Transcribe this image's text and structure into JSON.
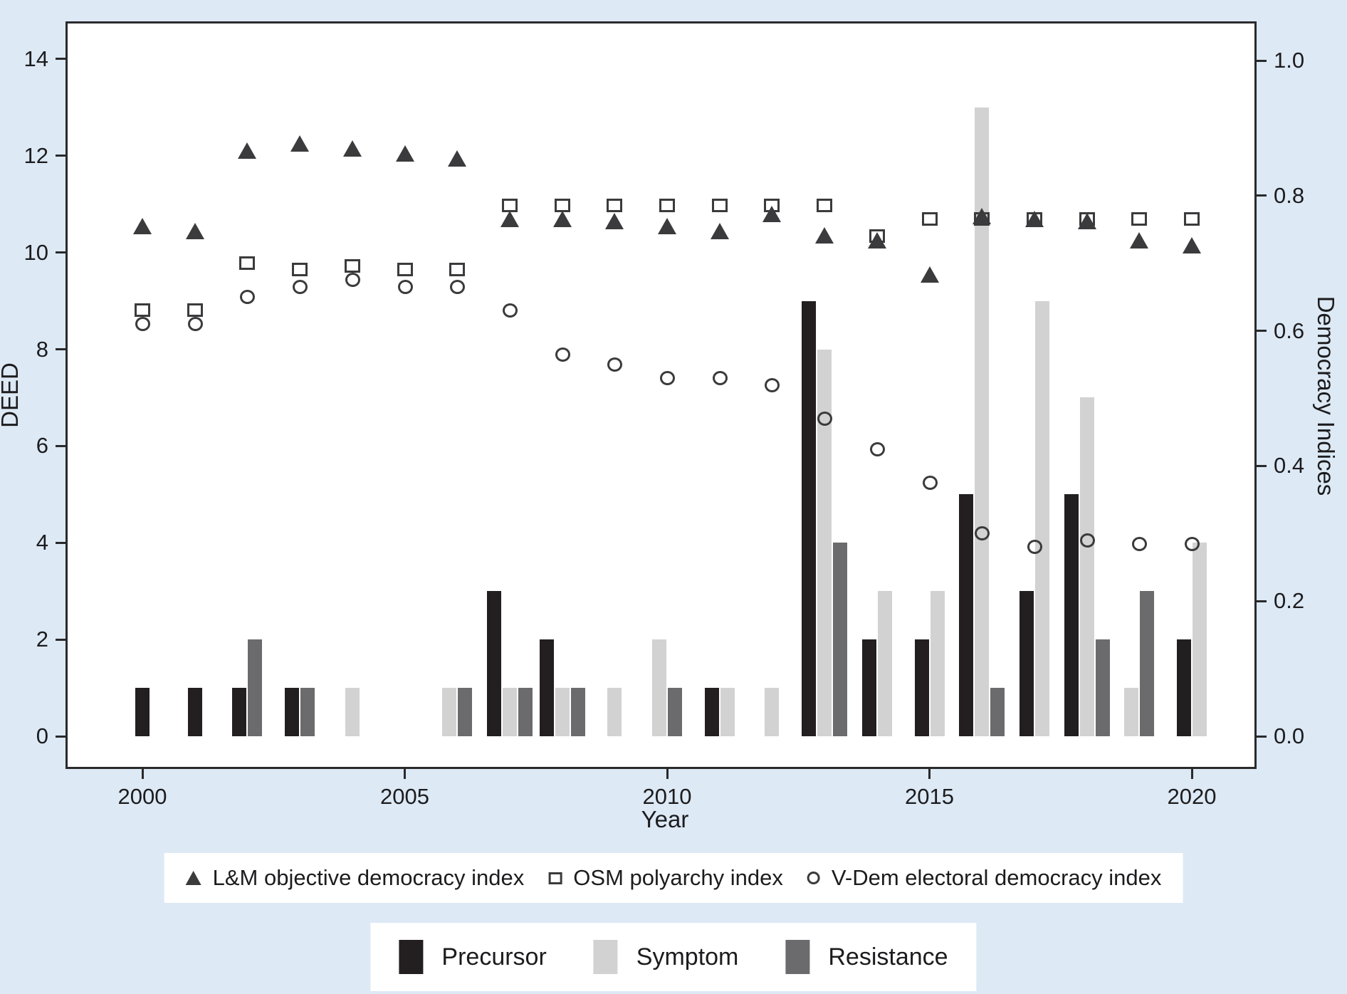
{
  "chart_data": {
    "type": "combo-bar-scatter",
    "title": "",
    "xlabel": "Year",
    "ylabel_left": "DEED",
    "ylabel_right": "Democracy Indices",
    "x": [
      2000,
      2001,
      2002,
      2003,
      2004,
      2005,
      2006,
      2007,
      2008,
      2009,
      2010,
      2011,
      2012,
      2013,
      2014,
      2015,
      2016,
      2017,
      2018,
      2019,
      2020
    ],
    "ylim_left": [
      0,
      14
    ],
    "ylim_right": [
      0.0,
      1.0
    ],
    "grid": "off",
    "y_left_ticks": [
      {
        "label": "0",
        "value": 0
      },
      {
        "label": "2",
        "value": 2
      },
      {
        "label": "4",
        "value": 4
      },
      {
        "label": "6",
        "value": 6
      },
      {
        "label": "8",
        "value": 8
      },
      {
        "label": "10",
        "value": 10
      },
      {
        "label": "12",
        "value": 12
      },
      {
        "label": "14",
        "value": 14
      }
    ],
    "y_right_ticks": [
      {
        "label": "0.0",
        "value": 0.0
      },
      {
        "label": "0.2",
        "value": 0.2
      },
      {
        "label": "0.4",
        "value": 0.4
      },
      {
        "label": "0.6",
        "value": 0.6
      },
      {
        "label": "0.8",
        "value": 0.8
      },
      {
        "label": "1.0",
        "value": 1.0
      }
    ],
    "x_ticks": [
      {
        "label": "2000",
        "value": 2000
      },
      {
        "label": "2005",
        "value": 2005
      },
      {
        "label": "2010",
        "value": 2010
      },
      {
        "label": "2015",
        "value": 2015
      },
      {
        "label": "2020",
        "value": 2020
      }
    ],
    "scatter_series": [
      {
        "name": "L&M objective democracy index",
        "marker": "filled-triangle",
        "axis": "left",
        "values": [
          10.5,
          10.4,
          12.05,
          12.2,
          12.1,
          12.0,
          11.9,
          10.65,
          10.65,
          10.6,
          10.5,
          10.4,
          10.75,
          10.3,
          10.2,
          9.5,
          10.7,
          10.65,
          10.6,
          10.2,
          10.1
        ]
      },
      {
        "name": "OSM polyarchy index",
        "marker": "open-square",
        "axis": "right",
        "values": [
          0.63,
          0.63,
          0.7,
          0.69,
          0.695,
          0.69,
          0.69,
          0.785,
          0.785,
          0.785,
          0.785,
          0.785,
          0.785,
          0.785,
          0.74,
          0.765,
          0.765,
          0.765,
          0.765,
          0.765,
          0.765
        ]
      },
      {
        "name": "V-Dem electoral democracy index",
        "marker": "open-circle",
        "axis": "right",
        "values": [
          0.61,
          0.61,
          0.65,
          0.665,
          0.675,
          0.665,
          0.665,
          0.63,
          0.565,
          0.55,
          0.53,
          0.53,
          0.52,
          0.47,
          0.425,
          0.375,
          0.3,
          0.28,
          0.29,
          0.285,
          0.285
        ]
      }
    ],
    "bar_series": [
      {
        "name": "Precursor",
        "color": "#231f20",
        "axis": "left",
        "values": [
          1,
          1,
          1,
          1,
          0,
          0,
          0,
          3,
          2,
          0,
          0,
          1,
          0,
          9,
          2,
          2,
          5,
          3,
          5,
          0,
          2
        ]
      },
      {
        "name": "Symptom",
        "color": "#d2d2d2",
        "axis": "left",
        "values": [
          0,
          0,
          0,
          0,
          1,
          0,
          1,
          1,
          1,
          1,
          2,
          1,
          1,
          8,
          3,
          3,
          13,
          9,
          7,
          1,
          4
        ]
      },
      {
        "name": "Resistance",
        "color": "#6b6b6e",
        "axis": "left",
        "values": [
          0,
          0,
          2,
          1,
          0,
          0,
          1,
          1,
          1,
          0,
          1,
          0,
          0,
          4,
          0,
          0,
          1,
          0,
          2,
          3,
          0
        ]
      }
    ],
    "legend_position": "below",
    "colors": {
      "background": "#dde9f5",
      "plot_background": "#ffffff",
      "axis": "#2a2a2c",
      "marker_stroke": "#3b3a3c"
    }
  }
}
